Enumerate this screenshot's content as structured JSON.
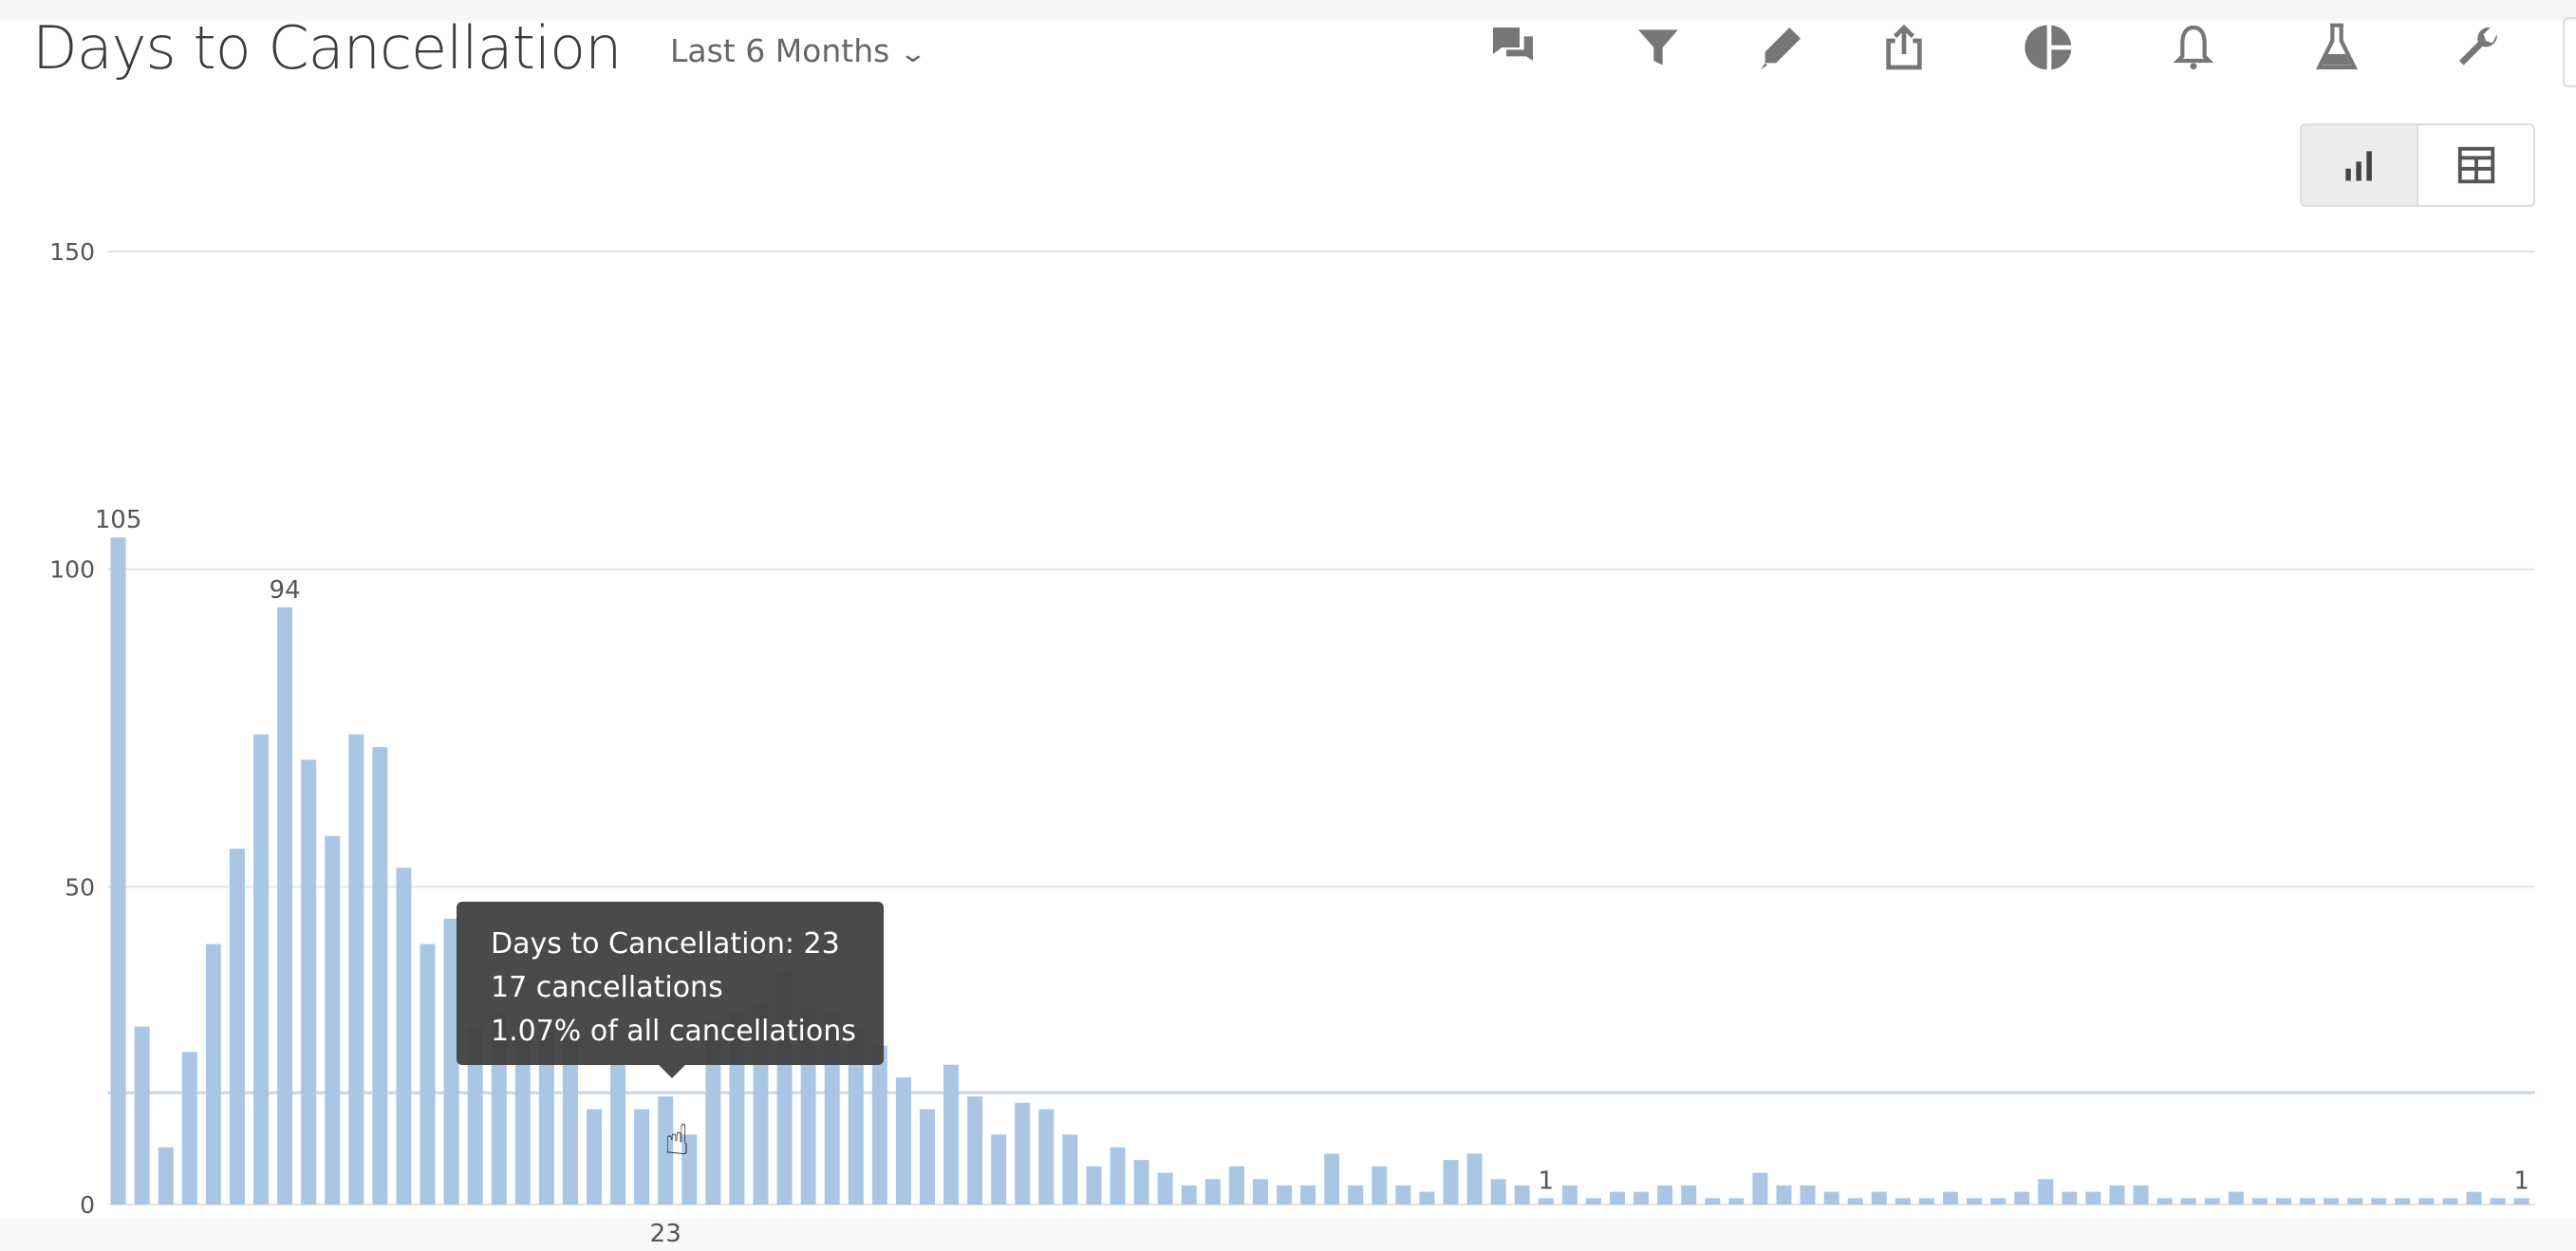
{
  "header": {
    "title": "Days to Cancellation",
    "date_range": "Last 6 Months",
    "icons": [
      "comments-icon",
      "filter-icon",
      "pencil-icon",
      "share-icon",
      "pie-chart-icon",
      "bell-icon",
      "flask-icon",
      "wrench-icon"
    ]
  },
  "view_toggle": {
    "active": "bar-chart",
    "options": [
      "bar-chart-icon",
      "table-icon"
    ]
  },
  "tooltip": {
    "line1": "Days to Cancellation: 23",
    "line2": "17 cancellations",
    "line3": "1.07% of all cancellations"
  },
  "colors": {
    "bar": "#a9c7e4",
    "grid": "#dfe3ea",
    "reference_line": "#c8d6ea",
    "tooltip_bg": "#3c3c3c"
  },
  "chart_data": {
    "type": "bar",
    "title": "Days to Cancellation",
    "xlabel": "",
    "ylabel": "",
    "ylim": [
      0,
      150
    ],
    "yticks": [
      0,
      50,
      100,
      150
    ],
    "grid": true,
    "x_tick_labels_shown": [
      {
        "x": 23,
        "label": "23"
      }
    ],
    "data_labels": [
      {
        "x": 0,
        "label": "105"
      },
      {
        "x": 7,
        "label": "94"
      },
      {
        "x": 60,
        "label": "1"
      },
      {
        "x": 101,
        "label": "1"
      }
    ],
    "reference_line": 17.6,
    "highlighted_x": 23,
    "x": [
      0,
      1,
      2,
      3,
      4,
      5,
      6,
      7,
      8,
      9,
      10,
      11,
      12,
      13,
      14,
      15,
      16,
      17,
      18,
      19,
      20,
      21,
      22,
      23,
      24,
      25,
      26,
      27,
      28,
      29,
      30,
      31,
      32,
      33,
      34,
      35,
      36,
      37,
      38,
      39,
      40,
      41,
      42,
      43,
      44,
      45,
      46,
      47,
      48,
      49,
      50,
      51,
      52,
      53,
      54,
      55,
      56,
      57,
      58,
      59,
      60,
      61,
      62,
      63,
      64,
      65,
      66,
      67,
      68,
      69,
      70,
      71,
      72,
      73,
      74,
      75,
      76,
      77,
      78,
      79,
      80,
      81,
      82,
      83,
      84,
      85,
      86,
      87,
      88,
      89,
      90,
      91,
      92,
      93,
      94,
      95,
      96,
      97,
      98,
      99,
      100,
      101
    ],
    "values": [
      105,
      28,
      9,
      24,
      41,
      56,
      74,
      94,
      70,
      58,
      74,
      72,
      53,
      41,
      45,
      28,
      30,
      27,
      29,
      26,
      15,
      22,
      15,
      17,
      11,
      29,
      30,
      32,
      37,
      31,
      30,
      28,
      25,
      20,
      15,
      22,
      17,
      11,
      16,
      15,
      11,
      6,
      9,
      7,
      5,
      3,
      4,
      6,
      4,
      3,
      3,
      8,
      3,
      6,
      3,
      2,
      7,
      8,
      4,
      3,
      1,
      3,
      1,
      2,
      2,
      3,
      3,
      1,
      1,
      5,
      3,
      3,
      2,
      1,
      2,
      1,
      1,
      2,
      1,
      1,
      2,
      4,
      2,
      2,
      3,
      3,
      1,
      1,
      1,
      2,
      1,
      1,
      1,
      1,
      1,
      1,
      1,
      1,
      1,
      2,
      1,
      1
    ]
  }
}
